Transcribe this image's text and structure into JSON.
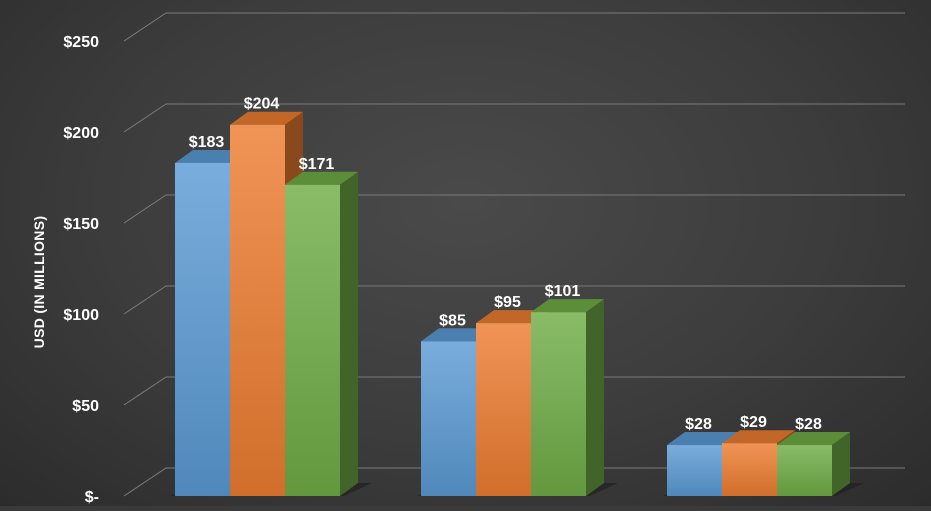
{
  "chart_data": {
    "type": "bar",
    "style": "3d-clustered-column",
    "categories": [
      "",
      "",
      ""
    ],
    "series": [
      {
        "values": [
          183,
          85,
          28
        ],
        "color": "#5b9bd5"
      },
      {
        "values": [
          204,
          95,
          29
        ],
        "color": "#ed7d31"
      },
      {
        "values": [
          171,
          101,
          28
        ],
        "color": "#70ad47"
      }
    ],
    "data_labels": [
      [
        "$183",
        "$85",
        "$28"
      ],
      [
        "$204",
        "$95",
        "$29"
      ],
      [
        "$171",
        "$101",
        "$28"
      ]
    ],
    "yticks": [
      0,
      50,
      100,
      150,
      200,
      250
    ],
    "ytick_labels": [
      "$-",
      "$50",
      "$100",
      "$150",
      "$200",
      "$250"
    ],
    "ylabel": "USD (IN MILLIONS)",
    "ylim": [
      0,
      250
    ],
    "grid": true,
    "legend": "none",
    "background_color": "#3c3c3c"
  }
}
